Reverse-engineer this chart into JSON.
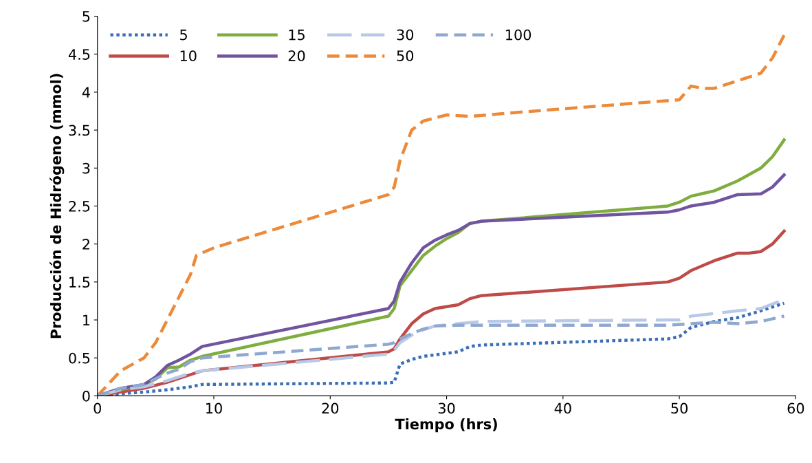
{
  "chart_data": {
    "type": "line",
    "xlabel": "Tiempo (hrs)",
    "ylabel": "Producción de Hidrógeno (mmol)",
    "xlim": [
      0,
      60
    ],
    "xticks": [
      0,
      10,
      20,
      30,
      40,
      50,
      60
    ],
    "ylim": [
      0,
      5
    ],
    "yticks": [
      0,
      0.5,
      1,
      1.5,
      2,
      2.5,
      3,
      3.5,
      4,
      4.5,
      5
    ],
    "grid": false,
    "legend": "top left",
    "marker": "none",
    "series": [
      {
        "name": "5",
        "color": "#3a6fb7",
        "line_style": "dotted",
        "x": [
          0,
          2,
          4,
          6,
          8,
          9,
          25,
          25.5,
          26,
          27,
          28,
          30,
          31,
          32,
          33,
          49,
          50,
          51,
          53,
          55,
          57,
          59
        ],
        "values": [
          0,
          0.03,
          0.05,
          0.08,
          0.12,
          0.15,
          0.17,
          0.18,
          0.42,
          0.48,
          0.52,
          0.56,
          0.58,
          0.65,
          0.67,
          0.75,
          0.78,
          0.9,
          0.98,
          1.03,
          1.12,
          1.22
        ]
      },
      {
        "name": "10",
        "color": "#be4b48",
        "line_style": "solid",
        "x": [
          0,
          2,
          4,
          6,
          8,
          9,
          25,
          25.5,
          26,
          27,
          28,
          29,
          31,
          32,
          33,
          49,
          50,
          51,
          53,
          55,
          56,
          57,
          58,
          59
        ],
        "values": [
          0,
          0.05,
          0.1,
          0.18,
          0.28,
          0.33,
          0.58,
          0.62,
          0.75,
          0.95,
          1.08,
          1.15,
          1.2,
          1.28,
          1.32,
          1.5,
          1.55,
          1.65,
          1.78,
          1.88,
          1.88,
          1.9,
          2.0,
          2.17
        ]
      },
      {
        "name": "15",
        "color": "#7fad3f",
        "line_style": "solid",
        "x": [
          0,
          2,
          4,
          5,
          6,
          7,
          8,
          9,
          25,
          25.5,
          26,
          27,
          28,
          29,
          30,
          31,
          32,
          33,
          49,
          50,
          51,
          53,
          55,
          57,
          58,
          59
        ],
        "values": [
          0,
          0.08,
          0.15,
          0.22,
          0.37,
          0.38,
          0.47,
          0.52,
          1.05,
          1.15,
          1.45,
          1.65,
          1.85,
          1.97,
          2.07,
          2.15,
          2.27,
          2.3,
          2.5,
          2.55,
          2.63,
          2.7,
          2.83,
          3.0,
          3.15,
          3.37
        ]
      },
      {
        "name": "20",
        "color": "#7054a0",
        "line_style": "solid",
        "x": [
          0,
          2,
          4,
          5,
          6,
          7,
          8,
          9,
          25,
          25.5,
          26,
          27,
          28,
          29,
          30,
          31,
          32,
          33,
          49,
          50,
          51,
          53,
          55,
          57,
          58,
          59
        ],
        "values": [
          0,
          0.1,
          0.15,
          0.25,
          0.4,
          0.47,
          0.55,
          0.65,
          1.15,
          1.25,
          1.5,
          1.75,
          1.95,
          2.05,
          2.12,
          2.18,
          2.27,
          2.3,
          2.42,
          2.45,
          2.5,
          2.55,
          2.65,
          2.66,
          2.75,
          2.91
        ]
      },
      {
        "name": "30",
        "color": "#b8c9e8",
        "line_style": "longdash",
        "x": [
          0,
          2,
          4,
          6,
          8,
          9,
          25,
          25.5,
          26,
          27,
          28,
          29,
          31,
          33,
          49,
          50,
          51,
          55,
          57,
          59
        ],
        "values": [
          0,
          0.08,
          0.12,
          0.2,
          0.3,
          0.33,
          0.55,
          0.6,
          0.7,
          0.8,
          0.87,
          0.92,
          0.95,
          0.98,
          1.0,
          1.0,
          1.05,
          1.12,
          1.15,
          1.27
        ]
      },
      {
        "name": "50",
        "color": "#ec8a3a",
        "line_style": "dashed",
        "x": [
          0,
          2,
          4,
          5,
          6,
          7,
          8,
          8.5,
          10,
          25,
          25.5,
          26,
          27,
          28,
          30,
          32,
          35,
          50,
          51,
          52,
          53,
          55,
          57,
          58,
          59
        ],
        "values": [
          0,
          0.33,
          0.5,
          0.7,
          1.0,
          1.3,
          1.6,
          1.85,
          1.95,
          2.65,
          2.75,
          3.1,
          3.5,
          3.62,
          3.7,
          3.68,
          3.72,
          3.9,
          4.08,
          4.05,
          4.05,
          4.15,
          4.25,
          4.45,
          4.75
        ]
      },
      {
        "name": "100",
        "color": "#8fa8d0",
        "line_style": "dashed",
        "x": [
          0,
          2,
          4,
          6,
          7,
          8,
          9,
          25,
          25.5,
          26,
          27,
          28,
          29,
          31,
          49,
          51,
          53,
          55,
          57,
          59
        ],
        "values": [
          0,
          0.1,
          0.15,
          0.3,
          0.35,
          0.45,
          0.5,
          0.68,
          0.7,
          0.75,
          0.82,
          0.88,
          0.92,
          0.93,
          0.93,
          0.95,
          0.97,
          0.95,
          0.98,
          1.05
        ]
      }
    ]
  }
}
